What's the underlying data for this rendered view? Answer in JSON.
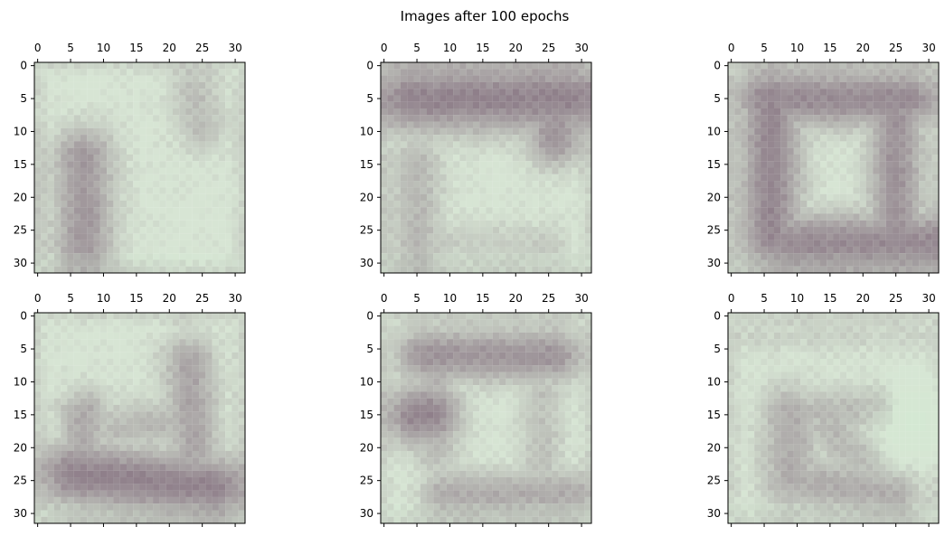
{
  "chart_data": {
    "type": "heatmap",
    "title": "Images after 100 epochs",
    "xlim": [
      -0.5,
      31.5
    ],
    "ylim": [
      31.5,
      -0.5
    ],
    "x_axis_position": "top",
    "x_ticks": [
      0,
      5,
      10,
      15,
      20,
      25,
      30
    ],
    "y_ticks": [
      0,
      5,
      10,
      15,
      20,
      25,
      30
    ],
    "tick_labels": [
      "0",
      "5",
      "10",
      "15",
      "20",
      "25",
      "30"
    ],
    "grid": false,
    "legend": "none",
    "palette": {
      "light": "#d7e5d4",
      "dark": "#8f7f8a",
      "frame": "#000000"
    },
    "panels": [
      {
        "name": "image-1",
        "row": 1,
        "column": 1,
        "description": "Light image with darker left vertical stroke and faint upper-right blob",
        "dark_strokes": [
          {
            "x1": 7,
            "y1": 14,
            "x2": 7,
            "y2": 27,
            "width": 3.4,
            "strength": 0.75
          },
          {
            "x1": 24,
            "y1": 4,
            "x2": 25,
            "y2": 9,
            "width": 3.0,
            "strength": 0.38
          },
          {
            "x1": 2,
            "y1": 13,
            "x2": 2,
            "y2": 28,
            "width": 2.0,
            "strength": 0.2
          }
        ]
      },
      {
        "name": "image-2",
        "row": 1,
        "column": 2,
        "description": "Dark top bar with right corner and faint left vertical stroke",
        "dark_strokes": [
          {
            "x1": 4,
            "y1": 5,
            "x2": 28,
            "y2": 5,
            "width": 3.8,
            "strength": 0.95
          },
          {
            "x1": 26,
            "y1": 5,
            "x2": 26,
            "y2": 11,
            "width": 3.2,
            "strength": 0.8
          },
          {
            "x1": 5,
            "y1": 15,
            "x2": 5,
            "y2": 28,
            "width": 3.0,
            "strength": 0.45
          },
          {
            "x1": 8,
            "y1": 27,
            "x2": 25,
            "y2": 27,
            "width": 2.4,
            "strength": 0.25
          }
        ]
      },
      {
        "name": "image-3",
        "row": 1,
        "column": 3,
        "description": "Dark rectangular outline",
        "dark_strokes": [
          {
            "x1": 5,
            "y1": 5,
            "x2": 27,
            "y2": 5,
            "width": 3.2,
            "strength": 0.88
          },
          {
            "x1": 6,
            "y1": 5,
            "x2": 6,
            "y2": 26,
            "width": 3.4,
            "strength": 0.92
          },
          {
            "x1": 25,
            "y1": 6,
            "x2": 25,
            "y2": 25,
            "width": 3.0,
            "strength": 0.82
          },
          {
            "x1": 8,
            "y1": 27,
            "x2": 29,
            "y2": 27,
            "width": 3.4,
            "strength": 0.88
          }
        ]
      },
      {
        "name": "image-4",
        "row": 2,
        "column": 1,
        "description": "Dark lower horizontal band with right vertical stroke",
        "dark_strokes": [
          {
            "x1": 5,
            "y1": 24,
            "x2": 27,
            "y2": 26,
            "width": 3.5,
            "strength": 0.95
          },
          {
            "x1": 7,
            "y1": 15,
            "x2": 7,
            "y2": 25,
            "width": 2.8,
            "strength": 0.6
          },
          {
            "x1": 23,
            "y1": 7,
            "x2": 24,
            "y2": 25,
            "width": 3.0,
            "strength": 0.62
          },
          {
            "x1": 12,
            "y1": 17,
            "x2": 22,
            "y2": 16,
            "width": 3.0,
            "strength": 0.42
          }
        ]
      },
      {
        "name": "image-5",
        "row": 2,
        "column": 2,
        "description": "Dark top bar with left blob and faint lower stroke",
        "dark_strokes": [
          {
            "x1": 6,
            "y1": 6,
            "x2": 26,
            "y2": 6,
            "width": 3.0,
            "strength": 0.78
          },
          {
            "x1": 5,
            "y1": 15,
            "x2": 7,
            "y2": 15,
            "width": 3.4,
            "strength": 0.95
          },
          {
            "x1": 8,
            "y1": 7,
            "x2": 8,
            "y2": 20,
            "width": 2.6,
            "strength": 0.48
          },
          {
            "x1": 9,
            "y1": 27,
            "x2": 28,
            "y2": 27,
            "width": 2.6,
            "strength": 0.56
          },
          {
            "x1": 24,
            "y1": 8,
            "x2": 24,
            "y2": 24,
            "width": 2.6,
            "strength": 0.35
          }
        ]
      },
      {
        "name": "image-6",
        "row": 2,
        "column": 3,
        "description": "Faint loop shape with light region on the right",
        "dark_strokes": [
          {
            "x1": 9,
            "y1": 15,
            "x2": 9,
            "y2": 25,
            "width": 3.4,
            "strength": 0.55
          },
          {
            "x1": 9,
            "y1": 25,
            "x2": 25,
            "y2": 27,
            "width": 3.0,
            "strength": 0.55
          },
          {
            "x1": 10,
            "y1": 15,
            "x2": 22,
            "y2": 14,
            "width": 2.8,
            "strength": 0.42
          },
          {
            "x1": 15,
            "y1": 17,
            "x2": 20,
            "y2": 22,
            "width": 3.0,
            "strength": 0.45
          },
          {
            "x1": 3,
            "y1": 3,
            "x2": 28,
            "y2": 3,
            "width": 2.0,
            "strength": 0.18
          }
        ],
        "light_spots": [
          {
            "x": 28,
            "y": 16,
            "radius": 4.5,
            "strength": 0.9
          }
        ]
      }
    ]
  }
}
